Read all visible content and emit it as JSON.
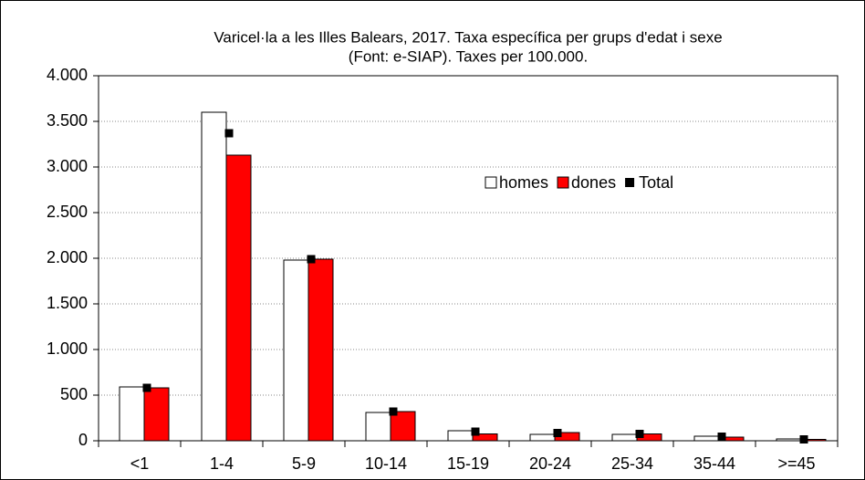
{
  "chart_data": {
    "type": "bar",
    "title": [
      "Varicel·la a les Illes Balears, 2017. Taxa específica per grups d'edat  i sexe",
      "(Font: e-SIAP). Taxes per 100.000."
    ],
    "categories": [
      "<1",
      "1-4",
      "5-9",
      "10-14",
      "15-19",
      "20-24",
      "25-34",
      "35-44",
      ">=45"
    ],
    "series": [
      {
        "name": "homes",
        "color": "#ffffff",
        "values": [
          590,
          3600,
          1980,
          310,
          110,
          70,
          70,
          50,
          20
        ]
      },
      {
        "name": "dones",
        "color": "#ff0000",
        "values": [
          580,
          3130,
          1990,
          320,
          75,
          90,
          75,
          40,
          15
        ]
      },
      {
        "name": "Total",
        "color": "#000000",
        "marker": "square",
        "values": [
          580,
          3370,
          1990,
          320,
          100,
          85,
          75,
          45,
          15
        ]
      }
    ],
    "ylim": [
      0,
      4000
    ],
    "yticks": [
      0,
      500,
      {
        "value": 1000,
        "label": "1.000"
      },
      {
        "value": 1500,
        "label": "1.500"
      },
      {
        "value": 2000,
        "label": "2.000"
      },
      {
        "value": 2500,
        "label": "2.500"
      },
      {
        "value": 3000,
        "label": "3.000"
      },
      {
        "value": 3500,
        "label": "3.500"
      },
      {
        "value": 4000,
        "label": "4.000"
      }
    ],
    "grid": true
  }
}
